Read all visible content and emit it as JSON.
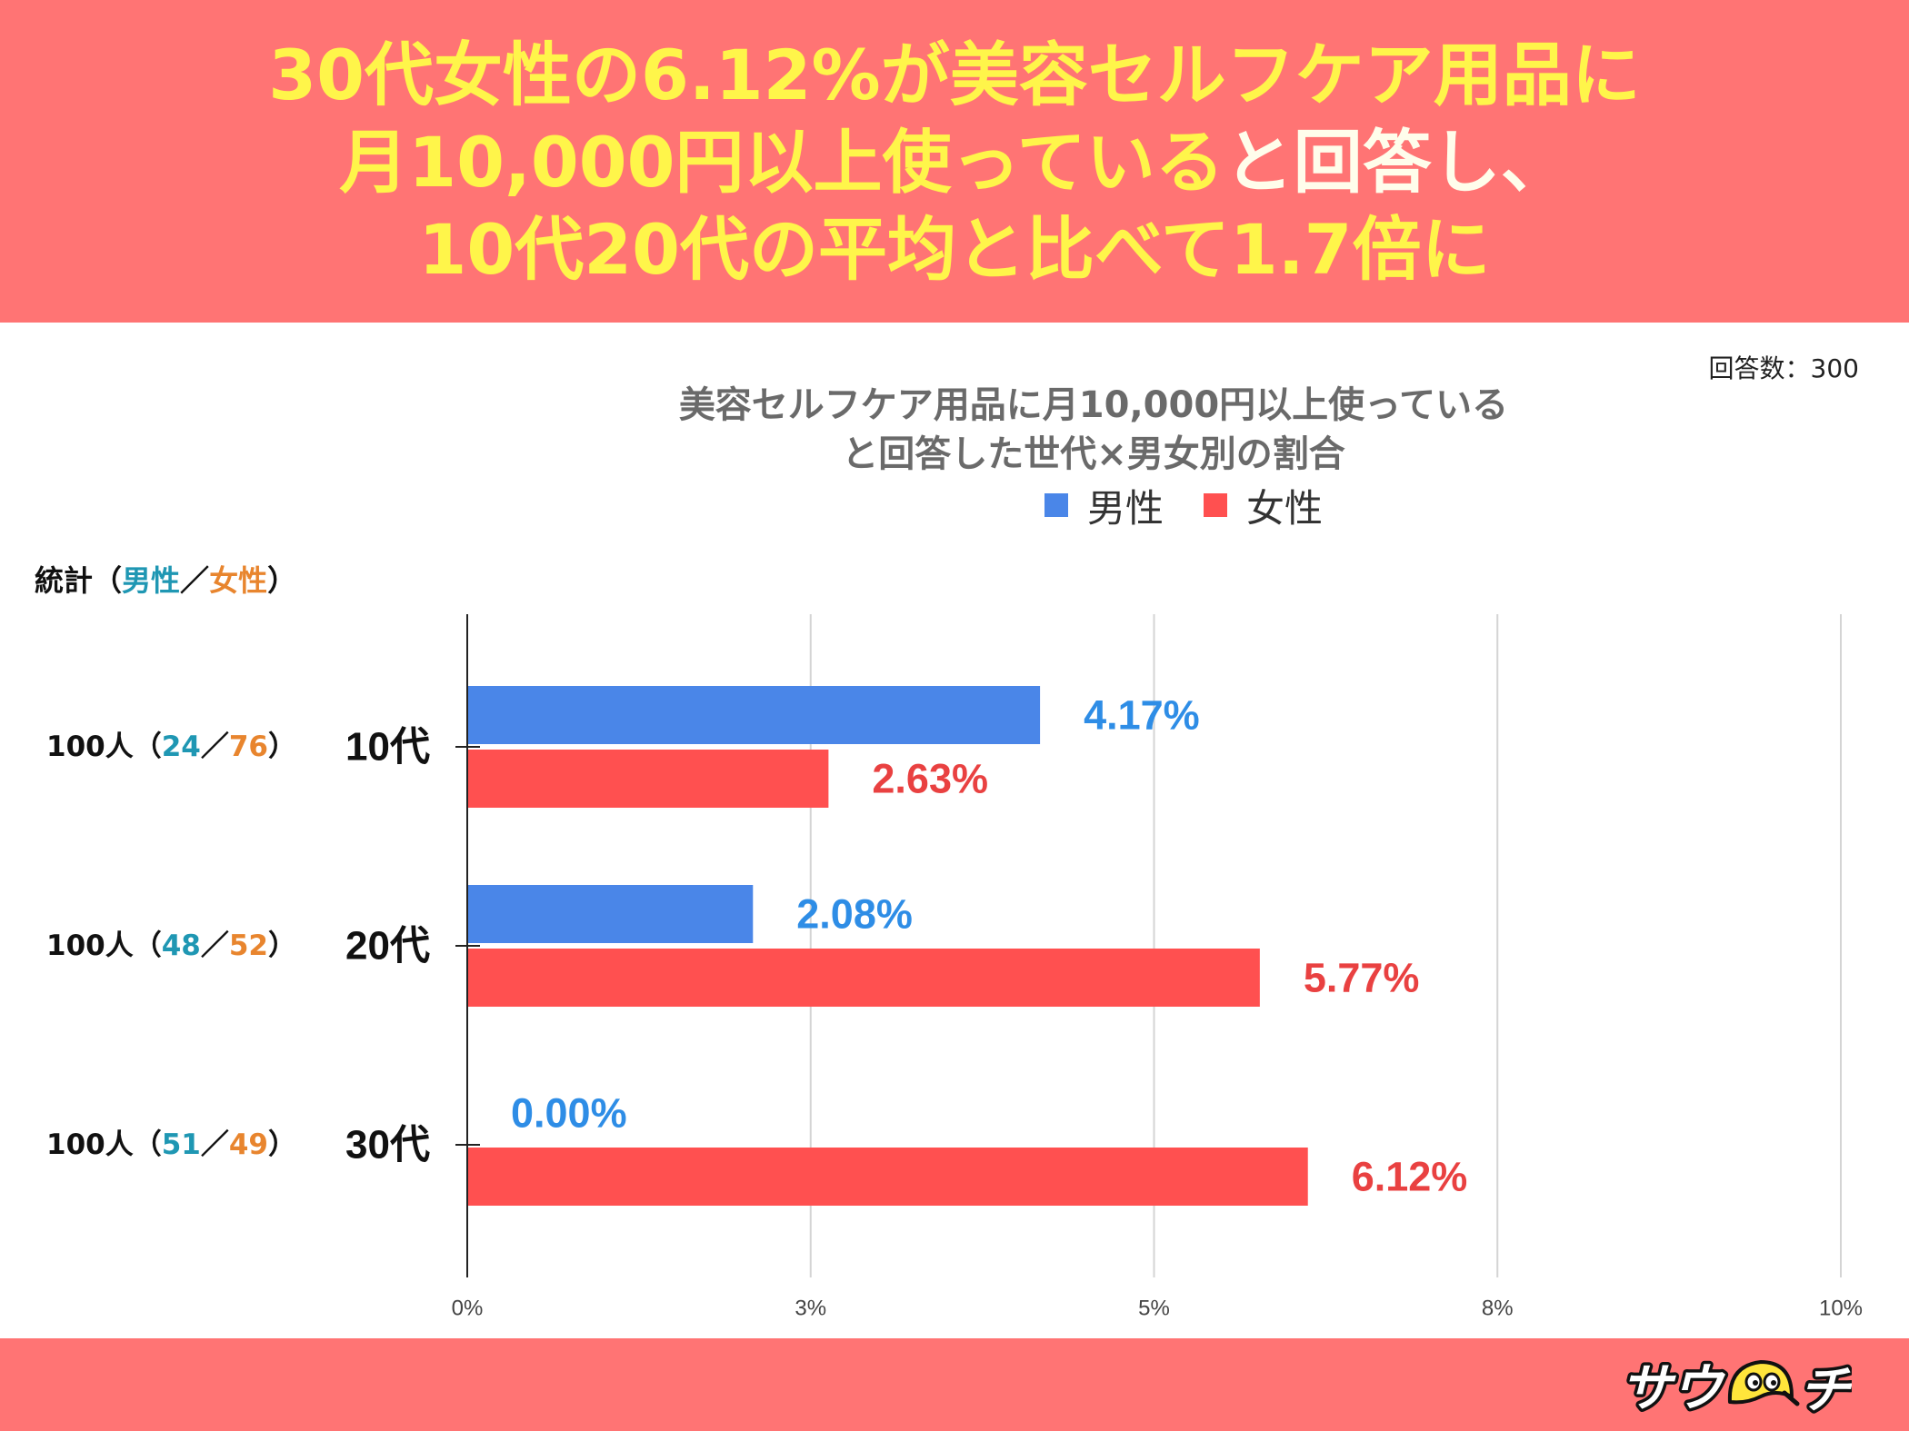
{
  "colors": {
    "band": "#FF7474",
    "headline": "#FFF54A",
    "headline_pale": "#FFFDEB",
    "male_text": "#1F97B3",
    "female_text": "#E8852E",
    "chart_title": "#6A6A6A"
  },
  "header": {
    "line1": "30代女性の6.12%が美容セルフケア用品に",
    "line2_main": "月10,000円以上使っている",
    "line2_tail": "と回答し、",
    "line3": "10代20代の平均と比べて1.7倍に"
  },
  "sample_size": "回答数：300",
  "stats": {
    "heading": "統計",
    "open": "（",
    "sep": "／",
    "close": "）",
    "male": "男性",
    "female": "女性",
    "rows": [
      {
        "total": "100人",
        "male": "24",
        "female": "76"
      },
      {
        "total": "100人",
        "male": "48",
        "female": "52"
      },
      {
        "total": "100人",
        "male": "51",
        "female": "49"
      }
    ]
  },
  "chart_data": {
    "type": "bar",
    "orientation": "horizontal",
    "title_lines": [
      "美容セルフケア用品に月10,000円以上使っている",
      "と回答した世代×男女別の割合"
    ],
    "categories": [
      "10代",
      "20代",
      "30代"
    ],
    "series": [
      {
        "name": "男性",
        "color": "#4A86E8",
        "label_color": "#2E8DE6",
        "values": [
          4.17,
          2.08,
          0.0
        ],
        "value_labels": [
          "4.17%",
          "2.08%",
          "0.00%"
        ]
      },
      {
        "name": "女性",
        "color": "#FF5050",
        "label_color": "#E94141",
        "values": [
          2.63,
          5.77,
          6.12
        ],
        "value_labels": [
          "2.63%",
          "5.77%",
          "6.12%"
        ]
      }
    ],
    "xlim": [
      0,
      10
    ],
    "xticks": [
      0,
      2.5,
      5,
      7.5,
      10
    ],
    "xtick_labels": [
      "0%",
      "3%",
      "5%",
      "8%",
      "10%"
    ],
    "xlabel": "",
    "ylabel": "",
    "legend": "top-center",
    "grid": true
  },
  "logo": {
    "left": "サウ",
    "right": "チ"
  }
}
